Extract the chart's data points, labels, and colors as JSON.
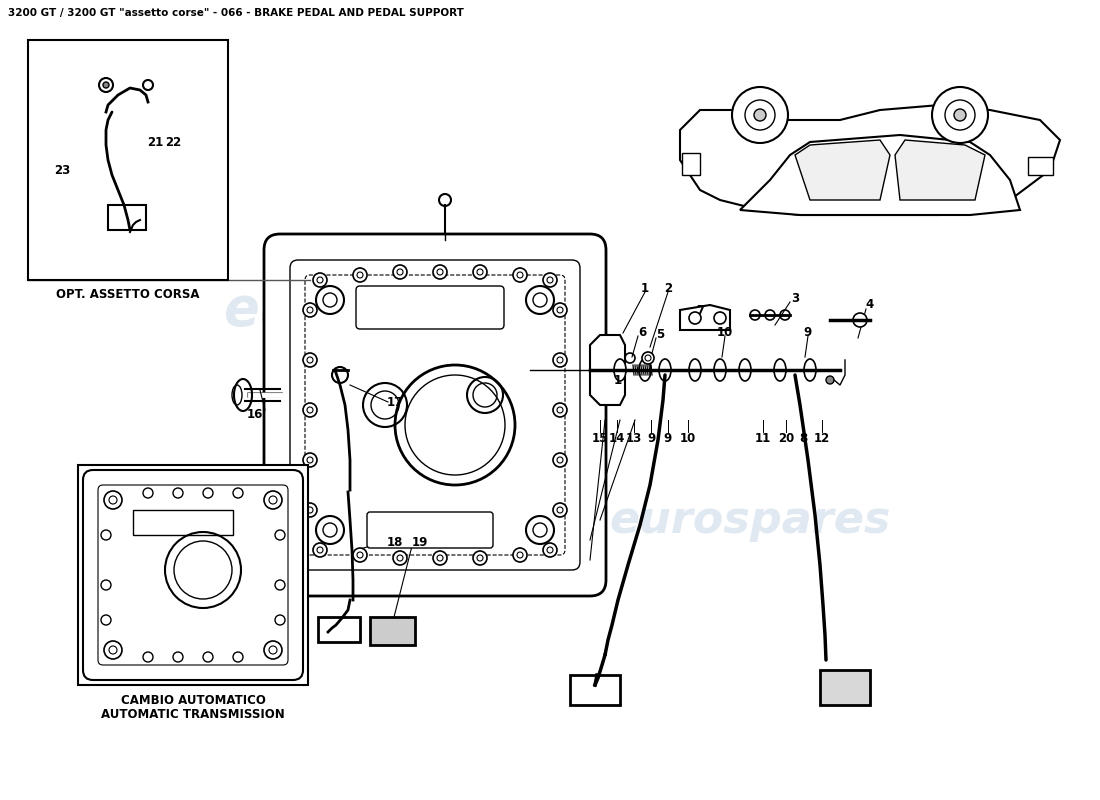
{
  "title": "3200 GT / 3200 GT \"assetto corse\" - 066 - BRAKE PEDAL AND PEDAL SUPPORT",
  "title_fontsize": 7.5,
  "background_color": "#ffffff",
  "watermark_text": "eurospares",
  "watermark_color": "#ccd9e8",
  "opt_label": "OPT. ASSETTO CORSA",
  "cambio_label1": "CAMBIO AUTOMATICO",
  "cambio_label2": "AUTOMATIC TRANSMISSION",
  "line_color": "#333333",
  "label_fontsize": 8.5
}
